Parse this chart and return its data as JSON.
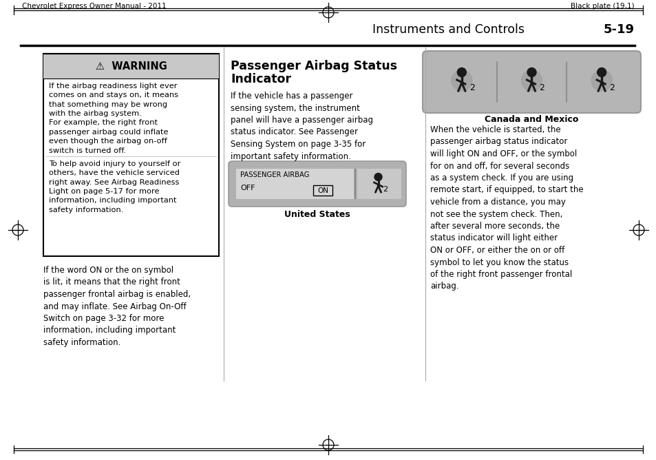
{
  "bg_color": "#ffffff",
  "page_header_left": "Chevrolet Express Owner Manual - 2011",
  "page_header_right": "Black plate (19,1)",
  "section_header": "Instruments and Controls",
  "section_page": "5-19",
  "warning_title": "⚠  WARNING",
  "middle_title_line1": "Passenger Airbag Status",
  "middle_title_line2": "Indicator",
  "middle_text": "If the vehicle has a passenger\nsensing system, the instrument\npanel will have a passenger airbag\nstatus indicator. See Passenger\nSensing System on page 3-35 for\nimportant safety information.",
  "indicator_label_top": "PASSENGER AIRBAG",
  "indicator_label_off": "OFF",
  "indicator_label_on": "ON",
  "caption_us": "United States",
  "bottom_text": "If the word ON or the on symbol\nis lit, it means that the right front\npassenger frontal airbag is enabled,\nand may inflate. See Airbag On-Off\nSwitch on page 3-32 for more\ninformation, including important\nsafety information.",
  "right_caption": "Canada and Mexico",
  "right_text": "When the vehicle is started, the\npassenger airbag status indicator\nwill light ON and OFF, or the symbol\nfor on and off, for several seconds\nas a system check. If you are using\nremote start, if equipped, to start the\nvehicle from a distance, you may\nnot see the system check. Then,\nafter several more seconds, the\nstatus indicator will light either\nON or OFF, or either the on or off\nsymbol to let you know the status\nof the right front passenger frontal\nairbag.",
  "warning_header_bg": "#c8c8c8",
  "warn_p1": "If the airbag readiness light ever\ncomes on and stays on, it means\nthat something may be wrong\nwith the airbag system.\nFor example, the right front\npassenger airbag could inflate\neven though the airbag on-off\nswitch is turned off.",
  "warn_p2": "To help avoid injury to yourself or\nothers, have the vehicle serviced\nright away. See Airbag Readiness\nLight on page 5-17 for more\ninformation, including important\nsafety information."
}
